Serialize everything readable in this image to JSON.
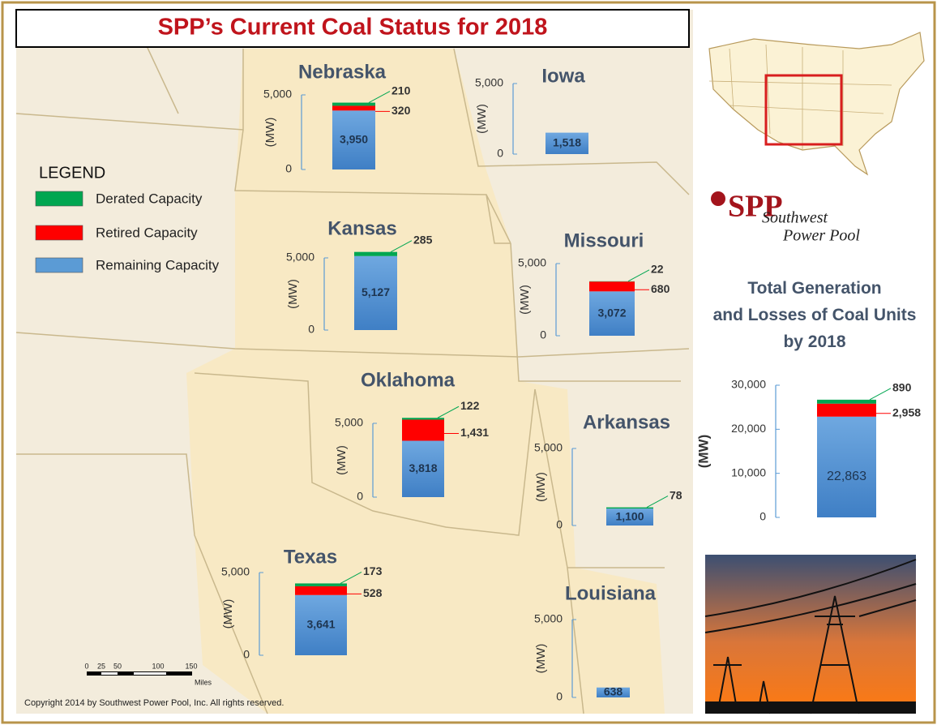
{
  "header": {
    "title": "SPP’s Current Coal Status for 2018"
  },
  "legend": {
    "title": "LEGEND",
    "items": [
      {
        "name": "Derated Capacity",
        "color": "#00a651"
      },
      {
        "name": "Retired Capacity",
        "color": "#ff0000"
      },
      {
        "name": "Remaining Capacity",
        "color": "#5b9bd5"
      }
    ]
  },
  "logo": {
    "mark": "SPP",
    "line1": "Southwest",
    "line2": "Power Pool"
  },
  "scale_bar": {
    "labels": [
      "0",
      "25",
      "50",
      "100",
      "150"
    ],
    "unit": "Miles"
  },
  "copyright": "Copyright 2014 by Southwest Power Pool, Inc. All rights reserved.",
  "chart_data": [
    {
      "type": "bar",
      "title": "Nebraska",
      "ylabel": "(MW)",
      "ylim": [
        0,
        5000
      ],
      "yticks": [
        0,
        {
          "value": 5000,
          "label": "5,000"
        }
      ],
      "values": [
        210,
        320,
        3950
      ],
      "value_labels": [
        "210",
        "320",
        "3,950"
      ]
    },
    {
      "type": "bar",
      "title": "Iowa",
      "ylabel": "(MW)",
      "ylim": [
        0,
        5000
      ],
      "yticks": [
        0,
        {
          "value": 5000,
          "label": "5,000"
        }
      ],
      "values": [
        null,
        null,
        1518
      ],
      "value_labels": [
        null,
        null,
        "1,518"
      ]
    },
    {
      "type": "bar",
      "title": "Kansas",
      "ylabel": "(MW)",
      "ylim": [
        0,
        5000
      ],
      "yticks": [
        0,
        {
          "value": 5000,
          "label": "5,000"
        }
      ],
      "values": [
        285,
        null,
        5127
      ],
      "value_labels": [
        "285",
        null,
        "5,127"
      ]
    },
    {
      "type": "bar",
      "title": "Missouri",
      "ylabel": "(MW)",
      "ylim": [
        0,
        5000
      ],
      "yticks": [
        0,
        {
          "value": 5000,
          "label": "5,000"
        }
      ],
      "values": [
        22,
        680,
        3072
      ],
      "value_labels": [
        "22",
        "680",
        "3,072"
      ]
    },
    {
      "type": "bar",
      "title": "Oklahoma",
      "ylabel": "(MW)",
      "ylim": [
        0,
        5000
      ],
      "yticks": [
        0,
        {
          "value": 5000,
          "label": "5,000"
        }
      ],
      "values": [
        122,
        1431,
        3818
      ],
      "value_labels": [
        "122",
        "1,431",
        "3,818"
      ]
    },
    {
      "type": "bar",
      "title": "Arkansas",
      "ylabel": "(MW)",
      "ylim": [
        0,
        5000
      ],
      "yticks": [
        0,
        {
          "value": 5000,
          "label": "5,000"
        }
      ],
      "values": [
        78,
        null,
        1100
      ],
      "value_labels": [
        "78",
        null,
        "1,100"
      ]
    },
    {
      "type": "bar",
      "title": "Texas",
      "ylabel": "(MW)",
      "ylim": [
        0,
        5000
      ],
      "yticks": [
        0,
        {
          "value": 5000,
          "label": "5,000"
        }
      ],
      "values": [
        173,
        528,
        3641
      ],
      "value_labels": [
        "173",
        "528",
        "3,641"
      ]
    },
    {
      "type": "bar",
      "title": "Louisiana",
      "ylabel": "(MW)",
      "ylim": [
        0,
        5000
      ],
      "yticks": [
        0,
        {
          "value": 5000,
          "label": "5,000"
        }
      ],
      "values": [
        null,
        null,
        638
      ],
      "value_labels": [
        null,
        null,
        "638"
      ]
    },
    {
      "type": "bar",
      "title": "Total Generation and Losses of Coal Units by 2018",
      "ylabel": "(MW)",
      "ylim": [
        0,
        30000
      ],
      "yticks": [
        0,
        {
          "value": 10000,
          "label": "10,000"
        },
        {
          "value": 20000,
          "label": "20,000"
        },
        {
          "value": 30000,
          "label": "30,000"
        }
      ],
      "values": [
        890,
        2958,
        22863
      ],
      "value_labels": [
        "890",
        "2,958",
        "22,863"
      ]
    }
  ]
}
